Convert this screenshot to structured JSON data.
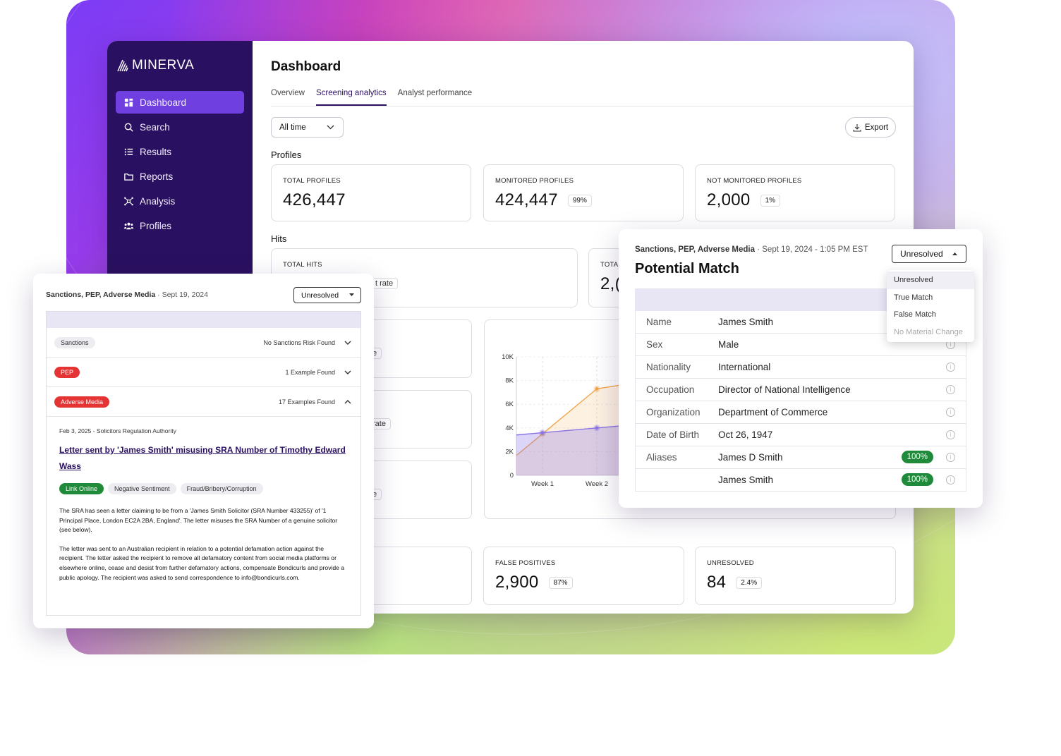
{
  "brand": {
    "name": "MINERVA"
  },
  "nav": {
    "items": [
      {
        "label": "Dashboard",
        "icon": "grid-icon"
      },
      {
        "label": "Search",
        "icon": "search-icon"
      },
      {
        "label": "Results",
        "icon": "list-icon"
      },
      {
        "label": "Reports",
        "icon": "folder-icon"
      },
      {
        "label": "Analysis",
        "icon": "network-icon"
      },
      {
        "label": "Profiles",
        "icon": "users-icon"
      }
    ]
  },
  "page": {
    "title": "Dashboard",
    "tabs": [
      "Overview",
      "Screening analytics",
      "Analyst performance"
    ],
    "active_tab": "Screening analytics",
    "time_filter": "All time",
    "export_label": "Export"
  },
  "profiles": {
    "section": "Profiles",
    "cards": [
      {
        "label": "TOTAL PROFILES",
        "value": "426,447",
        "pct": ""
      },
      {
        "label": "MONITORED PROFILES",
        "value": "424,447",
        "pct": "99%"
      },
      {
        "label": "NOT MONITORED PROFILES",
        "value": "2,000",
        "pct": "1%"
      }
    ]
  },
  "hits": {
    "section": "Hits",
    "total_label": "TOTAL HITS",
    "rate_fragment": "t rate",
    "second_label_fragment": "TOTA",
    "second_value_fragment": "2,(",
    "mid_fragments": [
      "e",
      "rate",
      "e"
    ]
  },
  "outcomes": [
    {
      "label": "FALSE POSITIVES",
      "value": "2,900",
      "pct": "87%"
    },
    {
      "label": "UNRESOLVED",
      "value": "84",
      "pct": "2.4%"
    }
  ],
  "chart_data": {
    "type": "area",
    "categories": [
      "Week 1",
      "Week 2"
    ],
    "series": [
      {
        "values": [
          3.5,
          7.3
        ],
        "color": "#f0a64a"
      },
      {
        "values": [
          3.6,
          4.0
        ],
        "color": "#8a73e6"
      }
    ],
    "y_ticks": [
      "10K",
      "8K",
      "6K",
      "4K",
      "2K",
      "0"
    ],
    "ylim": [
      0,
      10
    ],
    "grid": true
  },
  "left_panel": {
    "category": "Sanctions, PEP, Adverse Media",
    "date": "Sept 19, 2024",
    "status": "Unresolved",
    "rows": [
      {
        "tag": "Sanctions",
        "summary": "No Sanctions Risk Found",
        "style": "grey"
      },
      {
        "tag": "PEP",
        "summary": "1 Example Found",
        "style": "red"
      },
      {
        "tag": "Adverse Media",
        "summary": "17 Examples Found",
        "style": "red"
      }
    ],
    "article": {
      "meta": "Feb 3, 2025 - Solicitors Regulation Authority",
      "title": "Letter sent by 'James Smith' misusing SRA Number of Timothy Edward Wass",
      "tags": [
        "Link Online",
        "Negative Sentiment",
        "Fraud/Bribery/Corruption"
      ],
      "paragraphs": [
        "The SRA has seen a letter claiming to be from a 'James Smith Solicitor (SRA Number 433255)' of '1 Principal Place, London EC2A 2BA, England'. The letter misuses the SRA Number of a genuine solicitor (see below).",
        "The letter was sent to an Australian recipient in relation to a potential defamation action against the recipient. The letter asked the recipient to remove all defamatory content from social media platforms or elsewhere online, cease and desist from further defamatory actions, compensate Bondicurls and provide a public apology. The recipient was asked to send correspondence to info@bondicurls.com."
      ]
    }
  },
  "right_panel": {
    "category": "Sanctions, PEP, Adverse Media",
    "datetime": "Sept 19, 2024 - 1:05 PM EST",
    "title": "Potential Match",
    "status": "Unresolved",
    "menu": [
      "Unresolved",
      "True Match",
      "False Match",
      "No Material Change"
    ],
    "fields": [
      {
        "k": "Name",
        "v": "James Smith",
        "score": ""
      },
      {
        "k": "Sex",
        "v": "Male",
        "score": ""
      },
      {
        "k": "Nationality",
        "v": "International",
        "score": ""
      },
      {
        "k": "Occupation",
        "v": "Director of National Intelligence",
        "score": ""
      },
      {
        "k": "Organization",
        "v": "Department of Commerce",
        "score": ""
      },
      {
        "k": "Date of Birth",
        "v": "Oct 26, 1947",
        "score": ""
      },
      {
        "k": "Aliases",
        "v": "James D Smith",
        "score": "100%"
      },
      {
        "k": "",
        "v": "James Smith",
        "score": "100%"
      }
    ]
  }
}
